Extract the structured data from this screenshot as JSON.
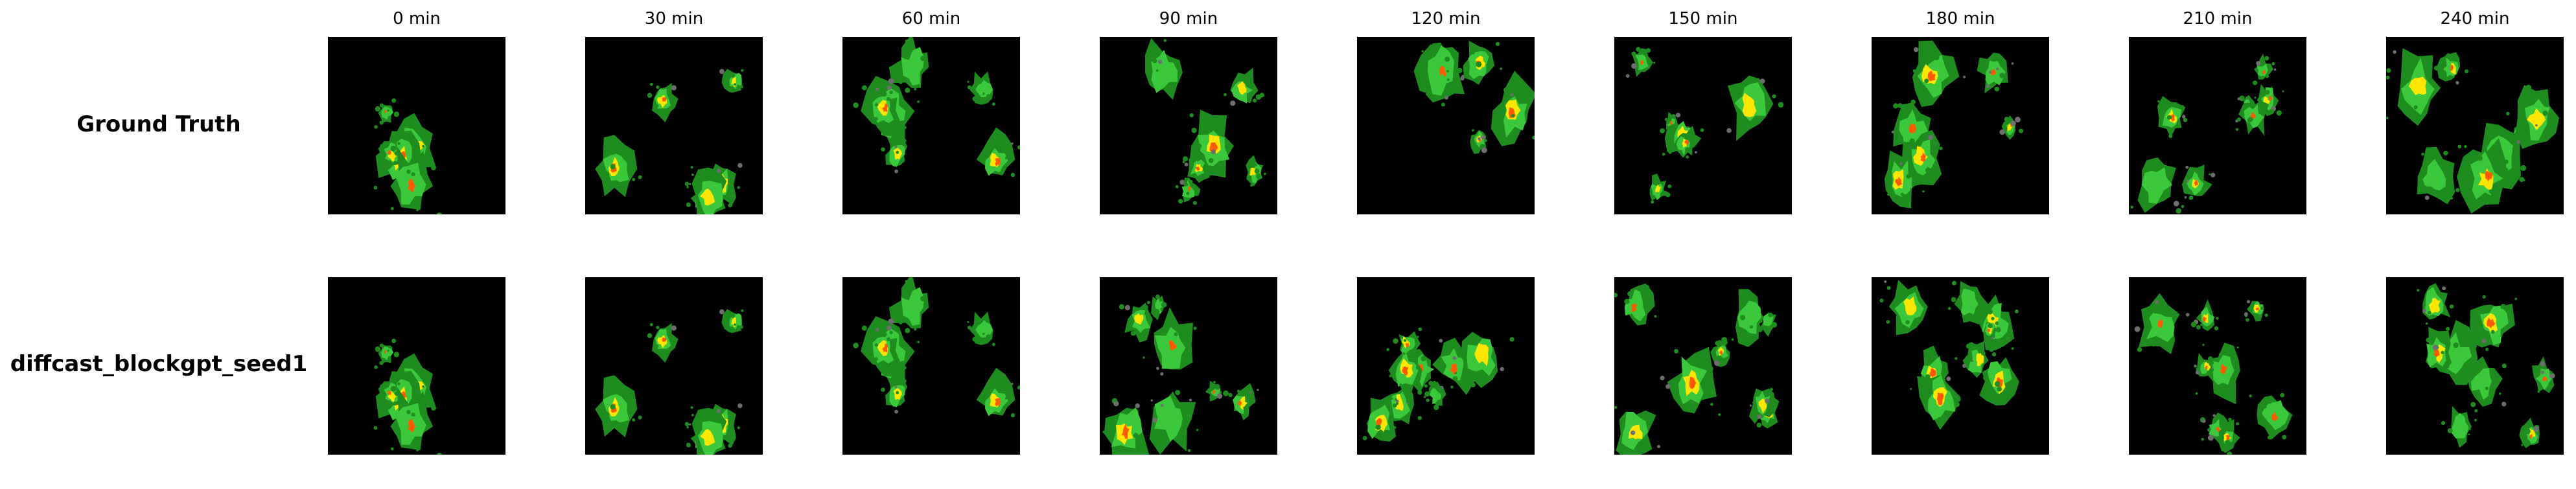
{
  "columns": [
    "0 min",
    "30 min",
    "60 min",
    "90 min",
    "120 min",
    "150 min",
    "180 min",
    "210 min",
    "240 min"
  ],
  "rows": [
    {
      "label": "Ground Truth"
    },
    {
      "label": "diffcast_blockgpt_seed1"
    }
  ],
  "colors": {
    "background": "#000000",
    "light_rain": "#1e8c1e",
    "moderate_rain": "#3cc83c",
    "heavy_rain": "#ffe600",
    "intense_rain": "#ff5a00",
    "clutter": "#6e6e6e"
  }
}
